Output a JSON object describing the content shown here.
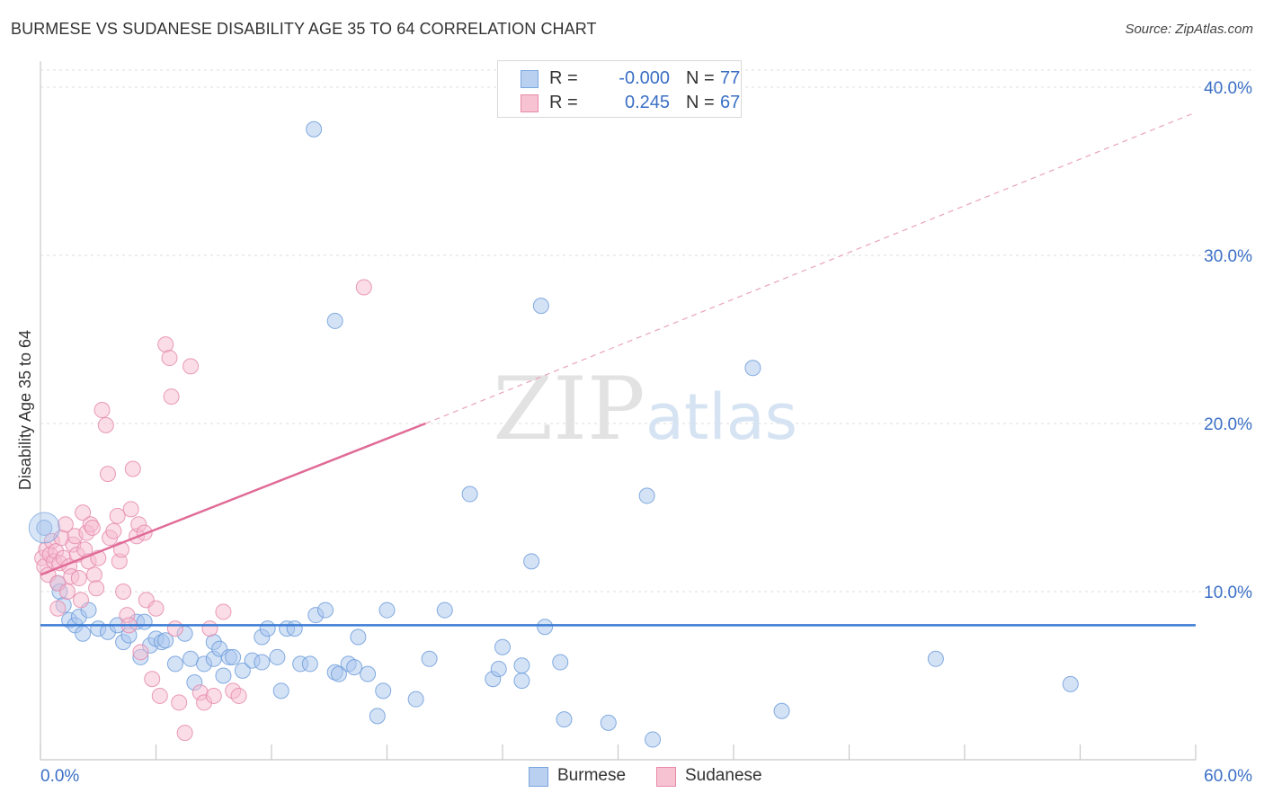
{
  "title": "BURMESE VS SUDANESE DISABILITY AGE 35 TO 64 CORRELATION CHART",
  "source": "Source: ZipAtlas.com",
  "watermark": {
    "zip": "ZIP",
    "atlas": "atlas"
  },
  "stats": [
    {
      "r_label": "R =",
      "r_value": "-0.000",
      "n_label": "N =",
      "n_value": "77",
      "color": "#7aa6e0",
      "fill": "#b9d0f0"
    },
    {
      "r_label": "R =",
      "r_value": " 0.245",
      "n_label": "N =",
      "n_value": "67",
      "color": "#e88aa8",
      "fill": "#f7c3d3"
    }
  ],
  "legend": [
    {
      "label": "Burmese",
      "color": "#7aa6e0",
      "fill": "#b9d0f0"
    },
    {
      "label": "Sudanese",
      "color": "#e88aa8",
      "fill": "#f7c3d3"
    }
  ],
  "chart_data": {
    "type": "scatter",
    "title": "BURMESE VS SUDANESE DISABILITY AGE 35 TO 64 CORRELATION CHART",
    "xlabel": "",
    "ylabel": "Disability Age 35 to 64",
    "xlim": [
      0,
      60
    ],
    "ylim": [
      0,
      40
    ],
    "x_tick_labels": [
      "0.0%",
      "60.0%"
    ],
    "y_ticks": [
      10,
      20,
      30,
      40
    ],
    "y_tick_labels": [
      "10.0%",
      "20.0%",
      "30.0%",
      "40.0%"
    ],
    "grid": true,
    "series": [
      {
        "name": "Burmese",
        "color": "#4a86d8",
        "trend": {
          "x": [
            0,
            60
          ],
          "y": [
            8.0,
            8.0
          ],
          "style": "solid"
        },
        "points": [
          [
            0.2,
            13.8
          ],
          [
            0.9,
            10.5
          ],
          [
            1.0,
            10.0
          ],
          [
            1.2,
            9.2
          ],
          [
            1.5,
            8.3
          ],
          [
            1.8,
            8.0
          ],
          [
            2.0,
            8.5
          ],
          [
            2.2,
            7.5
          ],
          [
            2.5,
            8.9
          ],
          [
            3.0,
            7.8
          ],
          [
            3.5,
            7.6
          ],
          [
            4.0,
            8.0
          ],
          [
            4.3,
            7.0
          ],
          [
            4.6,
            7.4
          ],
          [
            5.0,
            8.2
          ],
          [
            5.2,
            6.1
          ],
          [
            5.4,
            8.2
          ],
          [
            5.7,
            6.8
          ],
          [
            6.0,
            7.2
          ],
          [
            6.3,
            7.0
          ],
          [
            6.5,
            7.1
          ],
          [
            7.0,
            5.7
          ],
          [
            7.5,
            7.5
          ],
          [
            7.8,
            6.0
          ],
          [
            8.0,
            4.6
          ],
          [
            8.5,
            5.7
          ],
          [
            9.0,
            7.0
          ],
          [
            9.0,
            6.0
          ],
          [
            9.3,
            6.6
          ],
          [
            9.5,
            5.0
          ],
          [
            9.8,
            6.1
          ],
          [
            10.0,
            6.1
          ],
          [
            10.5,
            5.3
          ],
          [
            11.0,
            5.9
          ],
          [
            11.5,
            7.3
          ],
          [
            11.5,
            5.8
          ],
          [
            11.8,
            7.8
          ],
          [
            12.3,
            6.1
          ],
          [
            12.5,
            4.1
          ],
          [
            12.8,
            7.8
          ],
          [
            13.2,
            7.8
          ],
          [
            13.5,
            5.7
          ],
          [
            14.0,
            5.7
          ],
          [
            14.3,
            8.6
          ],
          [
            14.8,
            8.9
          ],
          [
            15.3,
            5.2
          ],
          [
            15.5,
            5.1
          ],
          [
            14.2,
            37.5
          ],
          [
            15.3,
            26.1
          ],
          [
            16.0,
            5.7
          ],
          [
            16.3,
            5.5
          ],
          [
            16.5,
            7.3
          ],
          [
            17.0,
            5.1
          ],
          [
            17.5,
            2.6
          ],
          [
            17.8,
            4.1
          ],
          [
            18.0,
            8.9
          ],
          [
            19.5,
            3.6
          ],
          [
            20.2,
            6.0
          ],
          [
            21.0,
            8.9
          ],
          [
            22.3,
            15.8
          ],
          [
            23.5,
            4.8
          ],
          [
            23.8,
            5.4
          ],
          [
            24.0,
            6.7
          ],
          [
            25.0,
            4.7
          ],
          [
            25.0,
            5.6
          ],
          [
            25.5,
            11.8
          ],
          [
            26.2,
            7.9
          ],
          [
            26.0,
            27.0
          ],
          [
            27.0,
            5.8
          ],
          [
            27.2,
            2.4
          ],
          [
            29.5,
            2.2
          ],
          [
            31.5,
            15.7
          ],
          [
            31.8,
            1.2
          ],
          [
            37.0,
            23.3
          ],
          [
            38.5,
            2.9
          ],
          [
            46.5,
            6.0
          ],
          [
            53.5,
            4.5
          ]
        ]
      },
      {
        "name": "Sudanese",
        "color": "#e06b96",
        "trend": {
          "x": [
            0,
            20
          ],
          "y": [
            11.0,
            20.0
          ],
          "style": "solid",
          "extension": {
            "x": [
              20,
              60
            ],
            "y": [
              20.0,
              38.5
            ],
            "style": "dashed"
          }
        },
        "points": [
          [
            0.1,
            12.0
          ],
          [
            0.2,
            11.5
          ],
          [
            0.3,
            12.5
          ],
          [
            0.4,
            11.0
          ],
          [
            0.5,
            12.2
          ],
          [
            0.6,
            13.0
          ],
          [
            0.7,
            11.8
          ],
          [
            0.8,
            12.4
          ],
          [
            0.9,
            10.5
          ],
          [
            1.0,
            11.7
          ],
          [
            1.1,
            13.2
          ],
          [
            1.2,
            12.0
          ],
          [
            1.3,
            14.0
          ],
          [
            1.4,
            10.0
          ],
          [
            1.5,
            11.5
          ],
          [
            1.6,
            10.9
          ],
          [
            1.7,
            12.8
          ],
          [
            1.8,
            13.3
          ],
          [
            1.9,
            12.2
          ],
          [
            2.0,
            10.8
          ],
          [
            2.1,
            9.5
          ],
          [
            2.2,
            14.7
          ],
          [
            2.3,
            12.5
          ],
          [
            2.4,
            13.5
          ],
          [
            2.5,
            11.8
          ],
          [
            2.6,
            14.0
          ],
          [
            2.7,
            13.8
          ],
          [
            2.8,
            11.0
          ],
          [
            2.9,
            10.2
          ],
          [
            3.0,
            12.0
          ],
          [
            3.2,
            20.8
          ],
          [
            3.4,
            19.9
          ],
          [
            3.5,
            17.0
          ],
          [
            3.6,
            13.2
          ],
          [
            3.8,
            13.6
          ],
          [
            4.0,
            14.5
          ],
          [
            4.1,
            11.8
          ],
          [
            4.2,
            12.5
          ],
          [
            4.3,
            10.0
          ],
          [
            4.5,
            8.6
          ],
          [
            4.6,
            8.0
          ],
          [
            4.7,
            14.9
          ],
          [
            4.8,
            17.3
          ],
          [
            5.0,
            13.3
          ],
          [
            5.1,
            14.0
          ],
          [
            5.2,
            6.4
          ],
          [
            5.4,
            13.5
          ],
          [
            5.5,
            9.5
          ],
          [
            5.8,
            4.8
          ],
          [
            6.0,
            9.0
          ],
          [
            6.2,
            3.8
          ],
          [
            6.5,
            24.7
          ],
          [
            6.7,
            23.9
          ],
          [
            6.8,
            21.6
          ],
          [
            7.0,
            7.8
          ],
          [
            7.2,
            3.4
          ],
          [
            7.5,
            1.6
          ],
          [
            7.8,
            23.4
          ],
          [
            8.3,
            4.0
          ],
          [
            8.5,
            3.4
          ],
          [
            8.8,
            7.8
          ],
          [
            9.0,
            3.8
          ],
          [
            9.5,
            8.8
          ],
          [
            10.0,
            4.1
          ],
          [
            10.3,
            3.8
          ],
          [
            16.8,
            28.1
          ],
          [
            0.9,
            9.0
          ]
        ]
      }
    ]
  }
}
